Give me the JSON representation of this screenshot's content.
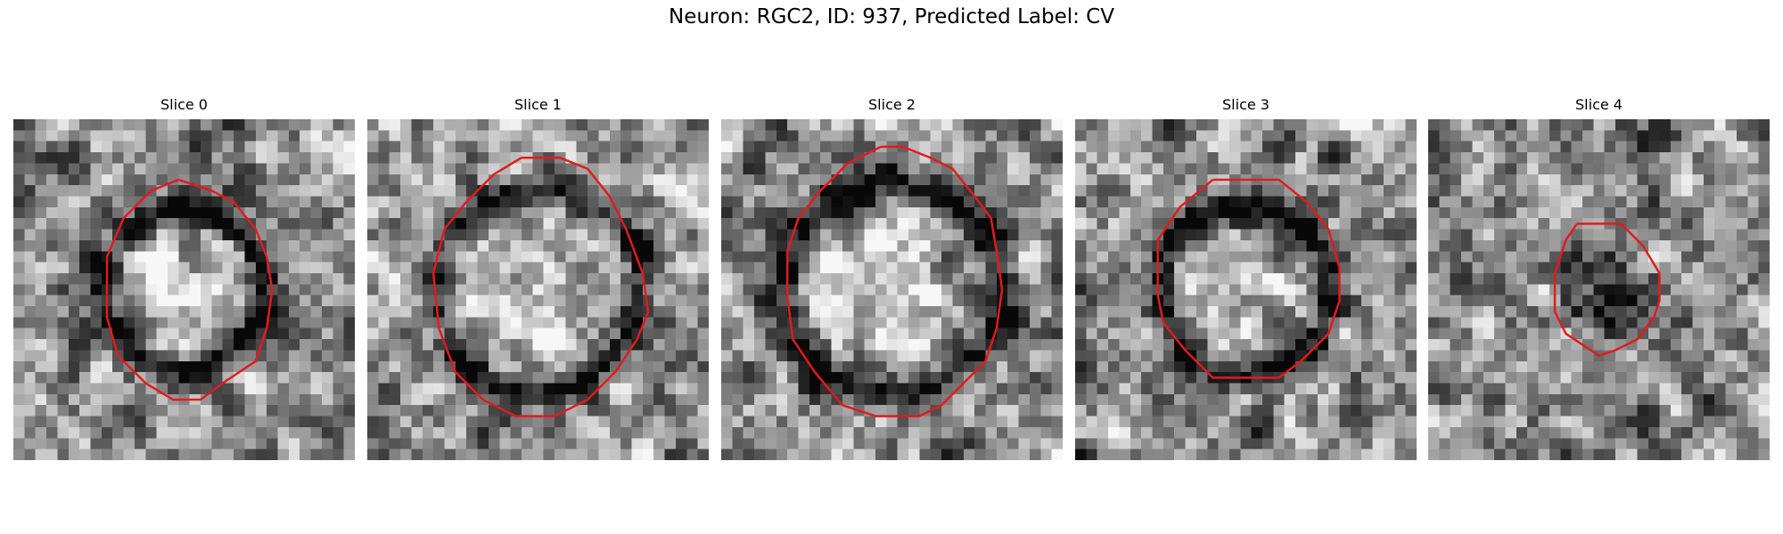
{
  "figure": {
    "title": "Neuron: RGC2, ID: 937, Predicted Label: CV",
    "contour_color": "#e31a1c"
  },
  "panels": [
    {
      "title": "Slice 0",
      "membrane": {
        "cx": 15.5,
        "cy": 15.5,
        "r": 7.2,
        "ring": 1.2
      },
      "interior_brightness": 0.62,
      "contour": [
        [
          15,
          5.5
        ],
        [
          18,
          6.5
        ],
        [
          20,
          7.5
        ],
        [
          22,
          10
        ],
        [
          23,
          12.5
        ],
        [
          23.5,
          15.5
        ],
        [
          23,
          19
        ],
        [
          22,
          22
        ],
        [
          19,
          24
        ],
        [
          17,
          25.5
        ],
        [
          14.5,
          25.5
        ],
        [
          12,
          24
        ],
        [
          9.5,
          21.5
        ],
        [
          8.5,
          18
        ],
        [
          8.5,
          12.5
        ],
        [
          10,
          9
        ],
        [
          12.5,
          6.5
        ]
      ],
      "cells": {
        "noise_seed": 11
      }
    },
    {
      "title": "Slice 1",
      "membrane": {
        "cx": 15.5,
        "cy": 15.5,
        "r": 9.2,
        "ring": 1.4
      },
      "interior_brightness": 0.45,
      "contour": [
        [
          14,
          3.5
        ],
        [
          17.5,
          3.5
        ],
        [
          20,
          4.5
        ],
        [
          22,
          7
        ],
        [
          23.5,
          10
        ],
        [
          25,
          14
        ],
        [
          25.5,
          17.5
        ],
        [
          24.5,
          20
        ],
        [
          22.5,
          23
        ],
        [
          20,
          25.5
        ],
        [
          17,
          27
        ],
        [
          13.5,
          27
        ],
        [
          10.5,
          25.5
        ],
        [
          8,
          23
        ],
        [
          6.5,
          19
        ],
        [
          6,
          14
        ],
        [
          7,
          10
        ],
        [
          9,
          7.5
        ],
        [
          11.5,
          5
        ]
      ],
      "cells": {
        "noise_seed": 23
      }
    },
    {
      "title": "Slice 2",
      "membrane": {
        "cx": 15.5,
        "cy": 15.5,
        "r": 9.6,
        "ring": 1.8
      },
      "interior_brightness": 0.78,
      "contour": [
        [
          14.5,
          2.5
        ],
        [
          16.5,
          2.5
        ],
        [
          19,
          3.5
        ],
        [
          21,
          4.5
        ],
        [
          23,
          7
        ],
        [
          24.5,
          9
        ],
        [
          25,
          12
        ],
        [
          25.5,
          15.5
        ],
        [
          25,
          19
        ],
        [
          24,
          22
        ],
        [
          22,
          24
        ],
        [
          20,
          26
        ],
        [
          18,
          27
        ],
        [
          14,
          27
        ],
        [
          11,
          26
        ],
        [
          8.5,
          23
        ],
        [
          6.5,
          20
        ],
        [
          6,
          16
        ],
        [
          6,
          12
        ],
        [
          7,
          9
        ],
        [
          9,
          6.5
        ],
        [
          11.5,
          4
        ]
      ],
      "cells": {
        "noise_seed": 37
      }
    },
    {
      "title": "Slice 3",
      "membrane": {
        "cx": 15.5,
        "cy": 15.5,
        "r": 7.6,
        "ring": 1.6
      },
      "interior_brightness": 0.42,
      "contour": [
        [
          12.5,
          5.5
        ],
        [
          18.5,
          5.5
        ],
        [
          21,
          7.5
        ],
        [
          23,
          10
        ],
        [
          24,
          13.5
        ],
        [
          24,
          16.5
        ],
        [
          23,
          19.5
        ],
        [
          20.5,
          22
        ],
        [
          18.5,
          23.5
        ],
        [
          12.5,
          23.5
        ],
        [
          10,
          21
        ],
        [
          8,
          18.5
        ],
        [
          7.5,
          16
        ],
        [
          7.5,
          11
        ],
        [
          9.5,
          8
        ]
      ],
      "cells": {
        "noise_seed": 53
      }
    },
    {
      "title": "Slice 4",
      "membrane": {
        "cx": 16.0,
        "cy": 15.5,
        "r": 4.8,
        "ring": 0.0
      },
      "interior_brightness": -0.55,
      "contour": [
        [
          13.5,
          9.5
        ],
        [
          17.5,
          9.5
        ],
        [
          19.5,
          11.5
        ],
        [
          21,
          14
        ],
        [
          21,
          16.5
        ],
        [
          20.5,
          18
        ],
        [
          19,
          20
        ],
        [
          17,
          21
        ],
        [
          15.5,
          21.5
        ],
        [
          14,
          20.5
        ],
        [
          12.5,
          19.5
        ],
        [
          11.5,
          17.5
        ],
        [
          11.5,
          14
        ],
        [
          12.5,
          11
        ]
      ],
      "cells": {
        "noise_seed": 71
      }
    }
  ]
}
